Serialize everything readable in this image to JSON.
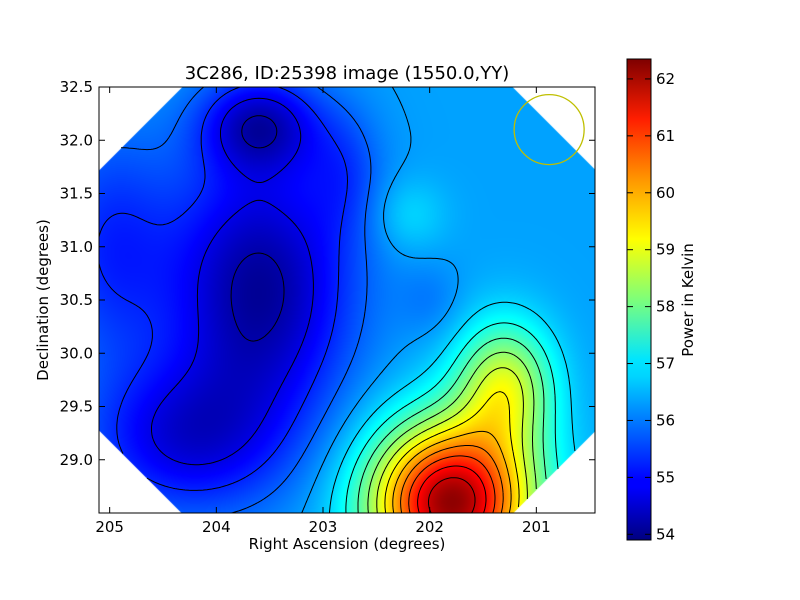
{
  "chart_data": {
    "type": "heatmap",
    "title": "3C286, ID:25398 image (1550.0,YY)",
    "xlabel": "Right Ascension (degrees)",
    "ylabel": "Declination (degrees)",
    "xlim": [
      205.1,
      200.45
    ],
    "ylim": [
      28.5,
      32.5
    ],
    "x_ticks": [
      "205",
      "204",
      "203",
      "202",
      "201"
    ],
    "y_ticks": [
      "29.0",
      "29.5",
      "30.0",
      "30.5",
      "31.0",
      "31.5",
      "32.0",
      "32.5"
    ],
    "colorbar": {
      "label": "Power in Kelvin",
      "range": [
        53.9,
        62.35
      ],
      "ticks": [
        "54",
        "55",
        "56",
        "57",
        "58",
        "59",
        "60",
        "61",
        "62"
      ],
      "colormap": "jet"
    },
    "field_shape": "diamond",
    "background_level": 56.3,
    "features": [
      {
        "kind": "peak",
        "ra": 201.8,
        "dec": 28.7,
        "value": 62.2
      },
      {
        "kind": "minimum",
        "ra": 203.6,
        "dec": 32.1,
        "value": 54.0
      },
      {
        "kind": "minimum",
        "ra": 203.6,
        "dec": 30.7,
        "value": 54.1
      },
      {
        "kind": "local-maximum",
        "ra": 202.2,
        "dec": 31.3,
        "value": 56.0
      }
    ],
    "beam_marker": {
      "ra": 200.88,
      "dec": 32.1,
      "color": "#bfbf00"
    }
  }
}
